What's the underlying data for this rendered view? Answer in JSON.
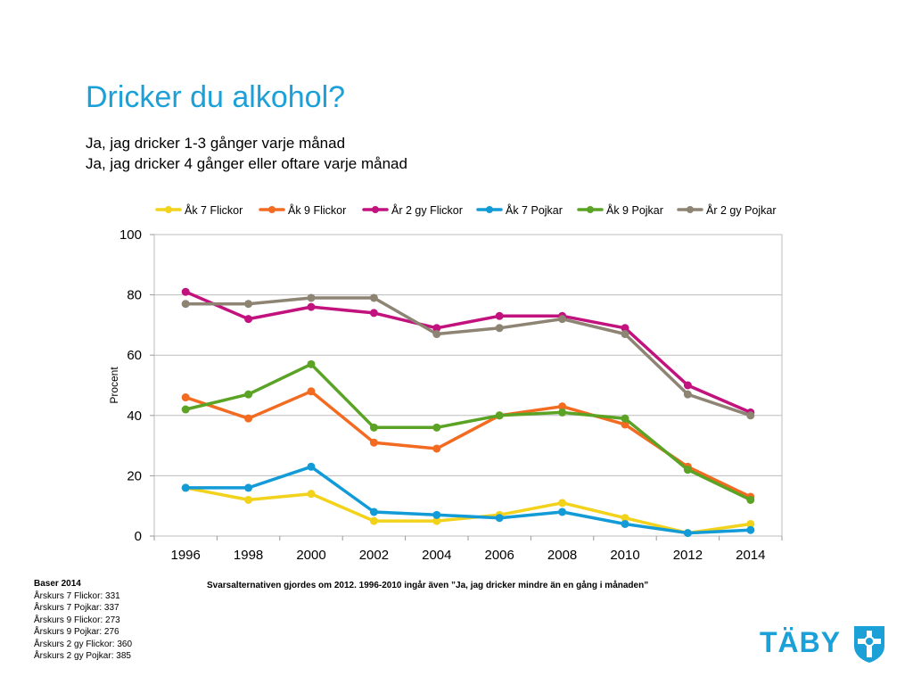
{
  "title": "Dricker du alkohol?",
  "subtitles": [
    "Ja, jag dricker 1-3 gånger varje månad",
    "Ja, jag dricker 4 gånger eller oftare varje månad"
  ],
  "note": "Svarsalternativen gjordes om 2012. 1996-2010 ingår även ”Ja, jag dricker mindre än en gång i månaden”",
  "base": {
    "title": "Baser 2014",
    "lines": [
      "Årskurs 7 Flickor: 331",
      "Årskurs 7 Pojkar: 337",
      "Årskurs 9 Flickor: 273",
      "Årskurs 9 Pojkar: 276",
      "Årskurs 2 gy Flickor: 360",
      "Årskurs 2 gy Pojkar: 385"
    ]
  },
  "logo": {
    "text": "TÄBY",
    "emblem": "taby-coat-of-arms-icon",
    "color": "#1ba0d8"
  },
  "chart_data": {
    "type": "line",
    "x": [
      "1996",
      "1998",
      "2000",
      "2002",
      "2004",
      "2006",
      "2008",
      "2010",
      "2012",
      "2014"
    ],
    "ylabel": "Procent",
    "ylim": [
      0,
      100
    ],
    "yticks": [
      0,
      20,
      40,
      60,
      80,
      100
    ],
    "grid": true,
    "legend": "top",
    "series": [
      {
        "name": "Åk 7 Flickor",
        "color": "#f2d21b",
        "values": [
          16,
          12,
          14,
          5,
          5,
          7,
          11,
          6,
          1,
          4
        ]
      },
      {
        "name": "Åk 9 Flickor",
        "color": "#f26b21",
        "values": [
          46,
          39,
          48,
          31,
          29,
          40,
          43,
          37,
          23,
          13
        ]
      },
      {
        "name": "År 2 gy Flickor",
        "color": "#c2127d",
        "values": [
          81,
          72,
          76,
          74,
          69,
          73,
          73,
          69,
          50,
          41
        ]
      },
      {
        "name": "Åk 7 Pojkar",
        "color": "#129bd6",
        "values": [
          16,
          16,
          23,
          8,
          7,
          6,
          8,
          4,
          1,
          2
        ]
      },
      {
        "name": "Åk 9 Pojkar",
        "color": "#5aa324",
        "values": [
          42,
          47,
          57,
          36,
          36,
          40,
          41,
          39,
          22,
          12
        ]
      },
      {
        "name": "År 2 gy Pojkar",
        "color": "#8e8474",
        "values": [
          77,
          77,
          79,
          79,
          67,
          69,
          72,
          67,
          47,
          40
        ]
      }
    ]
  }
}
